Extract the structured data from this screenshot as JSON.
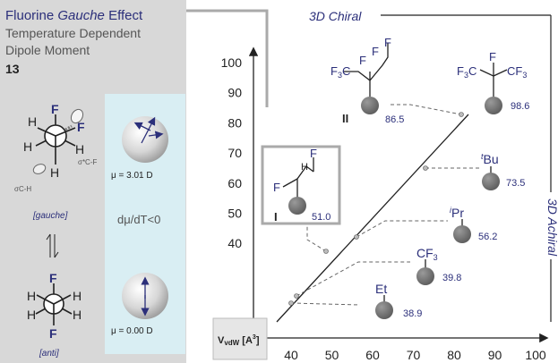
{
  "panel": {
    "title_a": "Fluorine ",
    "title_b": "Gauche",
    "title_c": " Effect",
    "subtitle1": "Temperature Dependent",
    "subtitle2": "Dipole Moment",
    "compound": "13",
    "gauche_label": "[gauche]",
    "anti_label": "[anti]",
    "sigma_cf": "σ*C-F",
    "sigma_ch": "σC-H",
    "mu_gauche": "μ = 3.01 D",
    "mu_anti": "μ = 0.00 D",
    "dmu_dt": "dμ/dT<0",
    "atom_f": "F",
    "atom_h": "H"
  },
  "chart": {
    "top_label": "3D Chiral",
    "right_label": "3D Achiral",
    "axis_box_label": "VvdW [A3]",
    "x_ticks": [
      40,
      50,
      60,
      70,
      80,
      90,
      100
    ],
    "y_ticks": [
      40,
      50,
      60,
      70,
      80,
      90,
      100
    ]
  },
  "substituents": [
    {
      "id": "fluoro_ethyl",
      "label": "I",
      "value": "51.0"
    },
    {
      "id": "trifluoro_ii",
      "label": "II",
      "value": "86.5"
    },
    {
      "id": "cf3_cf3",
      "label": "F3C,F,CF3",
      "value": "98.6"
    },
    {
      "id": "tbu",
      "label": "tBu",
      "value": "73.5"
    },
    {
      "id": "ipr",
      "label": "iPr",
      "value": "56.2"
    },
    {
      "id": "cf3",
      "label": "CF3",
      "value": "39.8"
    },
    {
      "id": "et",
      "label": "Et",
      "value": "38.9"
    }
  ]
}
